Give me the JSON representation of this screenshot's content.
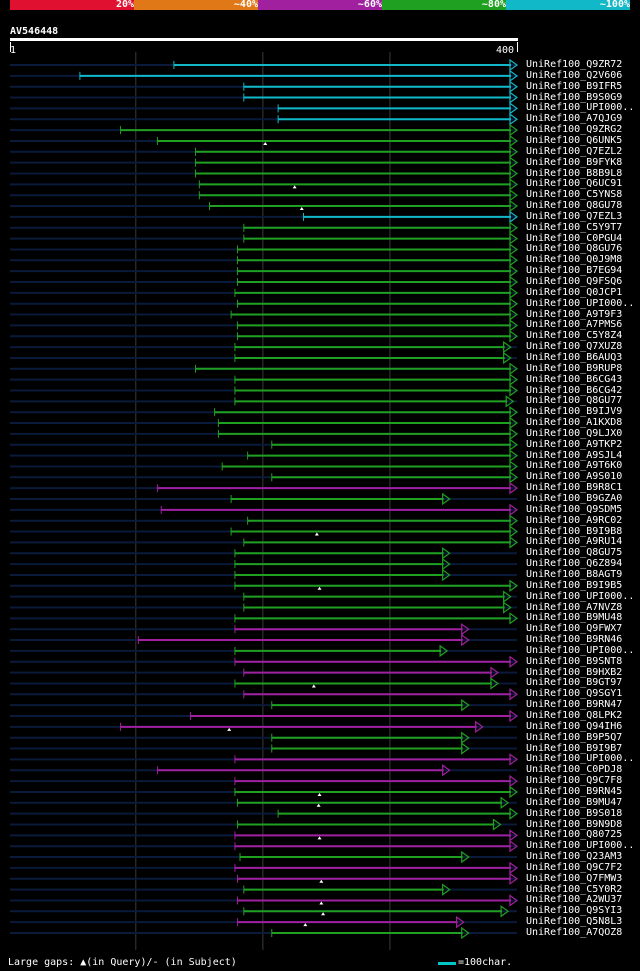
{
  "scale": {
    "labels": [
      "20%",
      "~40%",
      "~60%",
      "~80%",
      "~100%"
    ],
    "colors": [
      "#e01030",
      "#e07818",
      "#a020a0",
      "#20a020",
      "#10b8c8"
    ]
  },
  "query": {
    "id": "AV546448",
    "start": "1",
    "end": "400"
  },
  "chart_data": {
    "type": "alignment_overview",
    "query_length": 400,
    "hits": [
      {
        "id": "UniRef100_Q9ZR72",
        "q_start": 130,
        "q_end": 400,
        "identity": "~100%",
        "arrow": true
      },
      {
        "id": "UniRef100_Q2V606",
        "q_start": 56,
        "q_end": 400,
        "identity": "~100%",
        "arrow": true
      },
      {
        "id": "UniRef100_B9IFR5",
        "q_start": 185,
        "q_end": 400,
        "identity": "~100%",
        "arrow": true
      },
      {
        "id": "UniRef100_B9S0G9",
        "q_start": 185,
        "q_end": 400,
        "identity": "~100%",
        "arrow": true
      },
      {
        "id": "UniRef100_UPI000..",
        "q_start": 212,
        "q_end": 400,
        "identity": "~100%",
        "arrow": true
      },
      {
        "id": "UniRef100_A7QJG9",
        "q_start": 212,
        "q_end": 400,
        "identity": "~100%",
        "arrow": true
      },
      {
        "id": "UniRef100_Q9ZRG2",
        "q_start": 88,
        "q_end": 400,
        "identity": "~80%",
        "arrow": true
      },
      {
        "id": "UniRef100_Q6UNK5",
        "q_start": 117,
        "q_end": 400,
        "identity": "~80%",
        "arrow": true,
        "gap": true
      },
      {
        "id": "UniRef100_Q7EZL2",
        "q_start": 147,
        "q_end": 400,
        "identity": "~80%",
        "arrow": true
      },
      {
        "id": "UniRef100_B9FYK8",
        "q_start": 147,
        "q_end": 400,
        "identity": "~80%",
        "arrow": true
      },
      {
        "id": "UniRef100_B8B9L8",
        "q_start": 147,
        "q_end": 400,
        "identity": "~80%",
        "arrow": true
      },
      {
        "id": "UniRef100_Q6UC91",
        "q_start": 150,
        "q_end": 400,
        "identity": "~80%",
        "arrow": true,
        "gap": true
      },
      {
        "id": "UniRef100_C5YNS8",
        "q_start": 150,
        "q_end": 400,
        "identity": "~80%",
        "arrow": true
      },
      {
        "id": "UniRef100_Q8GU78",
        "q_start": 158,
        "q_end": 400,
        "identity": "~80%",
        "arrow": true,
        "gap": true
      },
      {
        "id": "UniRef100_Q7EZL3",
        "q_start": 232,
        "q_end": 400,
        "identity": "~100%",
        "arrow": true
      },
      {
        "id": "UniRef100_C5Y9T7",
        "q_start": 185,
        "q_end": 400,
        "identity": "~80%",
        "arrow": true
      },
      {
        "id": "UniRef100_C0PGU4",
        "q_start": 185,
        "q_end": 400,
        "identity": "~80%",
        "arrow": true
      },
      {
        "id": "UniRef100_Q8GU76",
        "q_start": 180,
        "q_end": 400,
        "identity": "~80%",
        "arrow": true
      },
      {
        "id": "UniRef100_Q0J9M8",
        "q_start": 180,
        "q_end": 400,
        "identity": "~80%",
        "arrow": true
      },
      {
        "id": "UniRef100_B7EG94",
        "q_start": 180,
        "q_end": 400,
        "identity": "~80%",
        "arrow": true
      },
      {
        "id": "UniRef100_Q9FSQ6",
        "q_start": 180,
        "q_end": 400,
        "identity": "~80%",
        "arrow": true
      },
      {
        "id": "UniRef100_Q0JCP1",
        "q_start": 178,
        "q_end": 400,
        "identity": "~80%",
        "arrow": true
      },
      {
        "id": "UniRef100_UPI000..",
        "q_start": 180,
        "q_end": 400,
        "identity": "~80%",
        "arrow": true
      },
      {
        "id": "UniRef100_A9T9F3",
        "q_start": 175,
        "q_end": 400,
        "identity": "~80%",
        "arrow": true
      },
      {
        "id": "UniRef100_A7PMS6",
        "q_start": 180,
        "q_end": 400,
        "identity": "~80%",
        "arrow": true
      },
      {
        "id": "UniRef100_C5Y8Z4",
        "q_start": 180,
        "q_end": 400,
        "identity": "~80%",
        "arrow": true
      },
      {
        "id": "UniRef100_Q7XUZ8",
        "q_start": 178,
        "q_end": 395,
        "identity": "~80%",
        "arrow": true
      },
      {
        "id": "UniRef100_B6AUQ3",
        "q_start": 178,
        "q_end": 395,
        "identity": "~80%",
        "arrow": true
      },
      {
        "id": "UniRef100_B9RUP8",
        "q_start": 147,
        "q_end": 400,
        "identity": "~80%",
        "arrow": true
      },
      {
        "id": "UniRef100_B6CG43",
        "q_start": 178,
        "q_end": 400,
        "identity": "~80%",
        "arrow": true
      },
      {
        "id": "UniRef100_B6CG42",
        "q_start": 178,
        "q_end": 400,
        "identity": "~80%",
        "arrow": true
      },
      {
        "id": "UniRef100_Q8GU77",
        "q_start": 178,
        "q_end": 397,
        "identity": "~80%",
        "arrow": true
      },
      {
        "id": "UniRef100_B9IJV9",
        "q_start": 162,
        "q_end": 400,
        "identity": "~80%",
        "arrow": true
      },
      {
        "id": "UniRef100_A1KXD8",
        "q_start": 165,
        "q_end": 400,
        "identity": "~80%",
        "arrow": true
      },
      {
        "id": "UniRef100_Q9LJX0",
        "q_start": 165,
        "q_end": 400,
        "identity": "~80%",
        "arrow": true
      },
      {
        "id": "UniRef100_A9TKP2",
        "q_start": 207,
        "q_end": 400,
        "identity": "~80%",
        "arrow": true
      },
      {
        "id": "UniRef100_A9SJL4",
        "q_start": 188,
        "q_end": 400,
        "identity": "~80%",
        "arrow": true
      },
      {
        "id": "UniRef100_A9T6K0",
        "q_start": 168,
        "q_end": 400,
        "identity": "~80%",
        "arrow": true
      },
      {
        "id": "UniRef100_A9S010",
        "q_start": 207,
        "q_end": 400,
        "identity": "~80%",
        "arrow": true
      },
      {
        "id": "UniRef100_B9R8C1",
        "q_start": 117,
        "q_end": 400,
        "identity": "~60%",
        "arrow": true
      },
      {
        "id": "UniRef100_B9GZA0",
        "q_start": 175,
        "q_end": 347,
        "identity": "~80%",
        "arrow": true
      },
      {
        "id": "UniRef100_Q9SDM5",
        "q_start": 120,
        "q_end": 400,
        "identity": "~60%",
        "arrow": true
      },
      {
        "id": "UniRef100_A9RC02",
        "q_start": 188,
        "q_end": 400,
        "identity": "~80%",
        "arrow": true
      },
      {
        "id": "UniRef100_B9I9B8",
        "q_start": 175,
        "q_end": 400,
        "identity": "~80%",
        "arrow": true,
        "gap": true
      },
      {
        "id": "UniRef100_A9RU14",
        "q_start": 185,
        "q_end": 400,
        "identity": "~80%",
        "arrow": true
      },
      {
        "id": "UniRef100_Q8GU75",
        "q_start": 178,
        "q_end": 347,
        "identity": "~80%",
        "arrow": true
      },
      {
        "id": "UniRef100_Q6Z894",
        "q_start": 178,
        "q_end": 347,
        "identity": "~80%",
        "arrow": true
      },
      {
        "id": "UniRef100_B8AGT9",
        "q_start": 178,
        "q_end": 347,
        "identity": "~80%",
        "arrow": true
      },
      {
        "id": "UniRef100_B9I9B5",
        "q_start": 178,
        "q_end": 400,
        "identity": "~80%",
        "arrow": true,
        "gap": true
      },
      {
        "id": "UniRef100_UPI000..",
        "q_start": 185,
        "q_end": 395,
        "identity": "~80%",
        "arrow": true
      },
      {
        "id": "UniRef100_A7NVZ8",
        "q_start": 185,
        "q_end": 395,
        "identity": "~80%",
        "arrow": true
      },
      {
        "id": "UniRef100_B9MU48",
        "q_start": 178,
        "q_end": 400,
        "identity": "~80%",
        "arrow": true
      },
      {
        "id": "UniRef100_Q9FWX7",
        "q_start": 178,
        "q_end": 362,
        "identity": "~60%",
        "arrow": true
      },
      {
        "id": "UniRef100_B9RN46",
        "q_start": 102,
        "q_end": 362,
        "identity": "~60%",
        "arrow": true
      },
      {
        "id": "UniRef100_UPI000..",
        "q_start": 178,
        "q_end": 345,
        "identity": "~80%",
        "arrow": true
      },
      {
        "id": "UniRef100_B9SNT8",
        "q_start": 178,
        "q_end": 400,
        "identity": "~60%",
        "arrow": true
      },
      {
        "id": "UniRef100_B9HXB2",
        "q_start": 185,
        "q_end": 385,
        "identity": "~60%",
        "arrow": true
      },
      {
        "id": "UniRef100_B9GT97",
        "q_start": 178,
        "q_end": 385,
        "identity": "~80%",
        "arrow": true,
        "gap": true
      },
      {
        "id": "UniRef100_Q9SGY1",
        "q_start": 185,
        "q_end": 400,
        "identity": "~60%",
        "arrow": true
      },
      {
        "id": "UniRef100_B9RN47",
        "q_start": 207,
        "q_end": 362,
        "identity": "~80%",
        "arrow": true
      },
      {
        "id": "UniRef100_Q8LPK2",
        "q_start": 143,
        "q_end": 400,
        "identity": "~60%",
        "arrow": true
      },
      {
        "id": "UniRef100_Q94IH6",
        "q_start": 88,
        "q_end": 373,
        "identity": "~60%",
        "arrow": true,
        "gap": true
      },
      {
        "id": "UniRef100_B9P5Q7",
        "q_start": 207,
        "q_end": 362,
        "identity": "~80%",
        "arrow": true
      },
      {
        "id": "UniRef100_B9I9B7",
        "q_start": 207,
        "q_end": 362,
        "identity": "~80%",
        "arrow": true
      },
      {
        "id": "UniRef100_UPI000..",
        "q_start": 178,
        "q_end": 400,
        "identity": "~60%",
        "arrow": true
      },
      {
        "id": "UniRef100_C0PDJ8",
        "q_start": 117,
        "q_end": 347,
        "identity": "~60%",
        "arrow": true
      },
      {
        "id": "UniRef100_Q9C7F8",
        "q_start": 178,
        "q_end": 400,
        "identity": "~60%",
        "arrow": true
      },
      {
        "id": "UniRef100_B9RN45",
        "q_start": 178,
        "q_end": 400,
        "identity": "~80%",
        "arrow": true,
        "gap": true
      },
      {
        "id": "UniRef100_B9MU47",
        "q_start": 180,
        "q_end": 393,
        "identity": "~80%",
        "arrow": true,
        "gap": true
      },
      {
        "id": "UniRef100_B9S018",
        "q_start": 212,
        "q_end": 400,
        "identity": "~80%",
        "arrow": true
      },
      {
        "id": "UniRef100_B9N9D8",
        "q_start": 180,
        "q_end": 387,
        "identity": "~80%",
        "arrow": true
      },
      {
        "id": "UniRef100_Q80725",
        "q_start": 178,
        "q_end": 400,
        "identity": "~60%",
        "arrow": true,
        "gap": true
      },
      {
        "id": "UniRef100_UPI000..",
        "q_start": 178,
        "q_end": 400,
        "identity": "~60%",
        "arrow": true
      },
      {
        "id": "UniRef100_Q23AM3",
        "q_start": 182,
        "q_end": 362,
        "identity": "~80%",
        "arrow": true
      },
      {
        "id": "UniRef100_Q9C7F2",
        "q_start": 178,
        "q_end": 400,
        "identity": "~60%",
        "arrow": true
      },
      {
        "id": "UniRef100_Q7FMW3",
        "q_start": 180,
        "q_end": 400,
        "identity": "~60%",
        "arrow": true,
        "gap": true
      },
      {
        "id": "UniRef100_C5Y0R2",
        "q_start": 185,
        "q_end": 347,
        "identity": "~80%",
        "arrow": true
      },
      {
        "id": "UniRef100_A2WU37",
        "q_start": 180,
        "q_end": 400,
        "identity": "~60%",
        "arrow": true,
        "gap": true
      },
      {
        "id": "UniRef100_Q9SYI3",
        "q_start": 185,
        "q_end": 393,
        "identity": "~80%",
        "arrow": true,
        "gap": true
      },
      {
        "id": "UniRef100_Q5N8L3",
        "q_start": 180,
        "q_end": 358,
        "identity": "~60%",
        "arrow": true,
        "gap": true
      },
      {
        "id": "UniRef100_A7QOZ8",
        "q_start": 207,
        "q_end": 362,
        "identity": "~80%",
        "arrow": true
      }
    ]
  },
  "footer": {
    "gaps_text": "Large gaps: ▲(in Query)/- (in Subject)",
    "legend_text": "=100char."
  }
}
